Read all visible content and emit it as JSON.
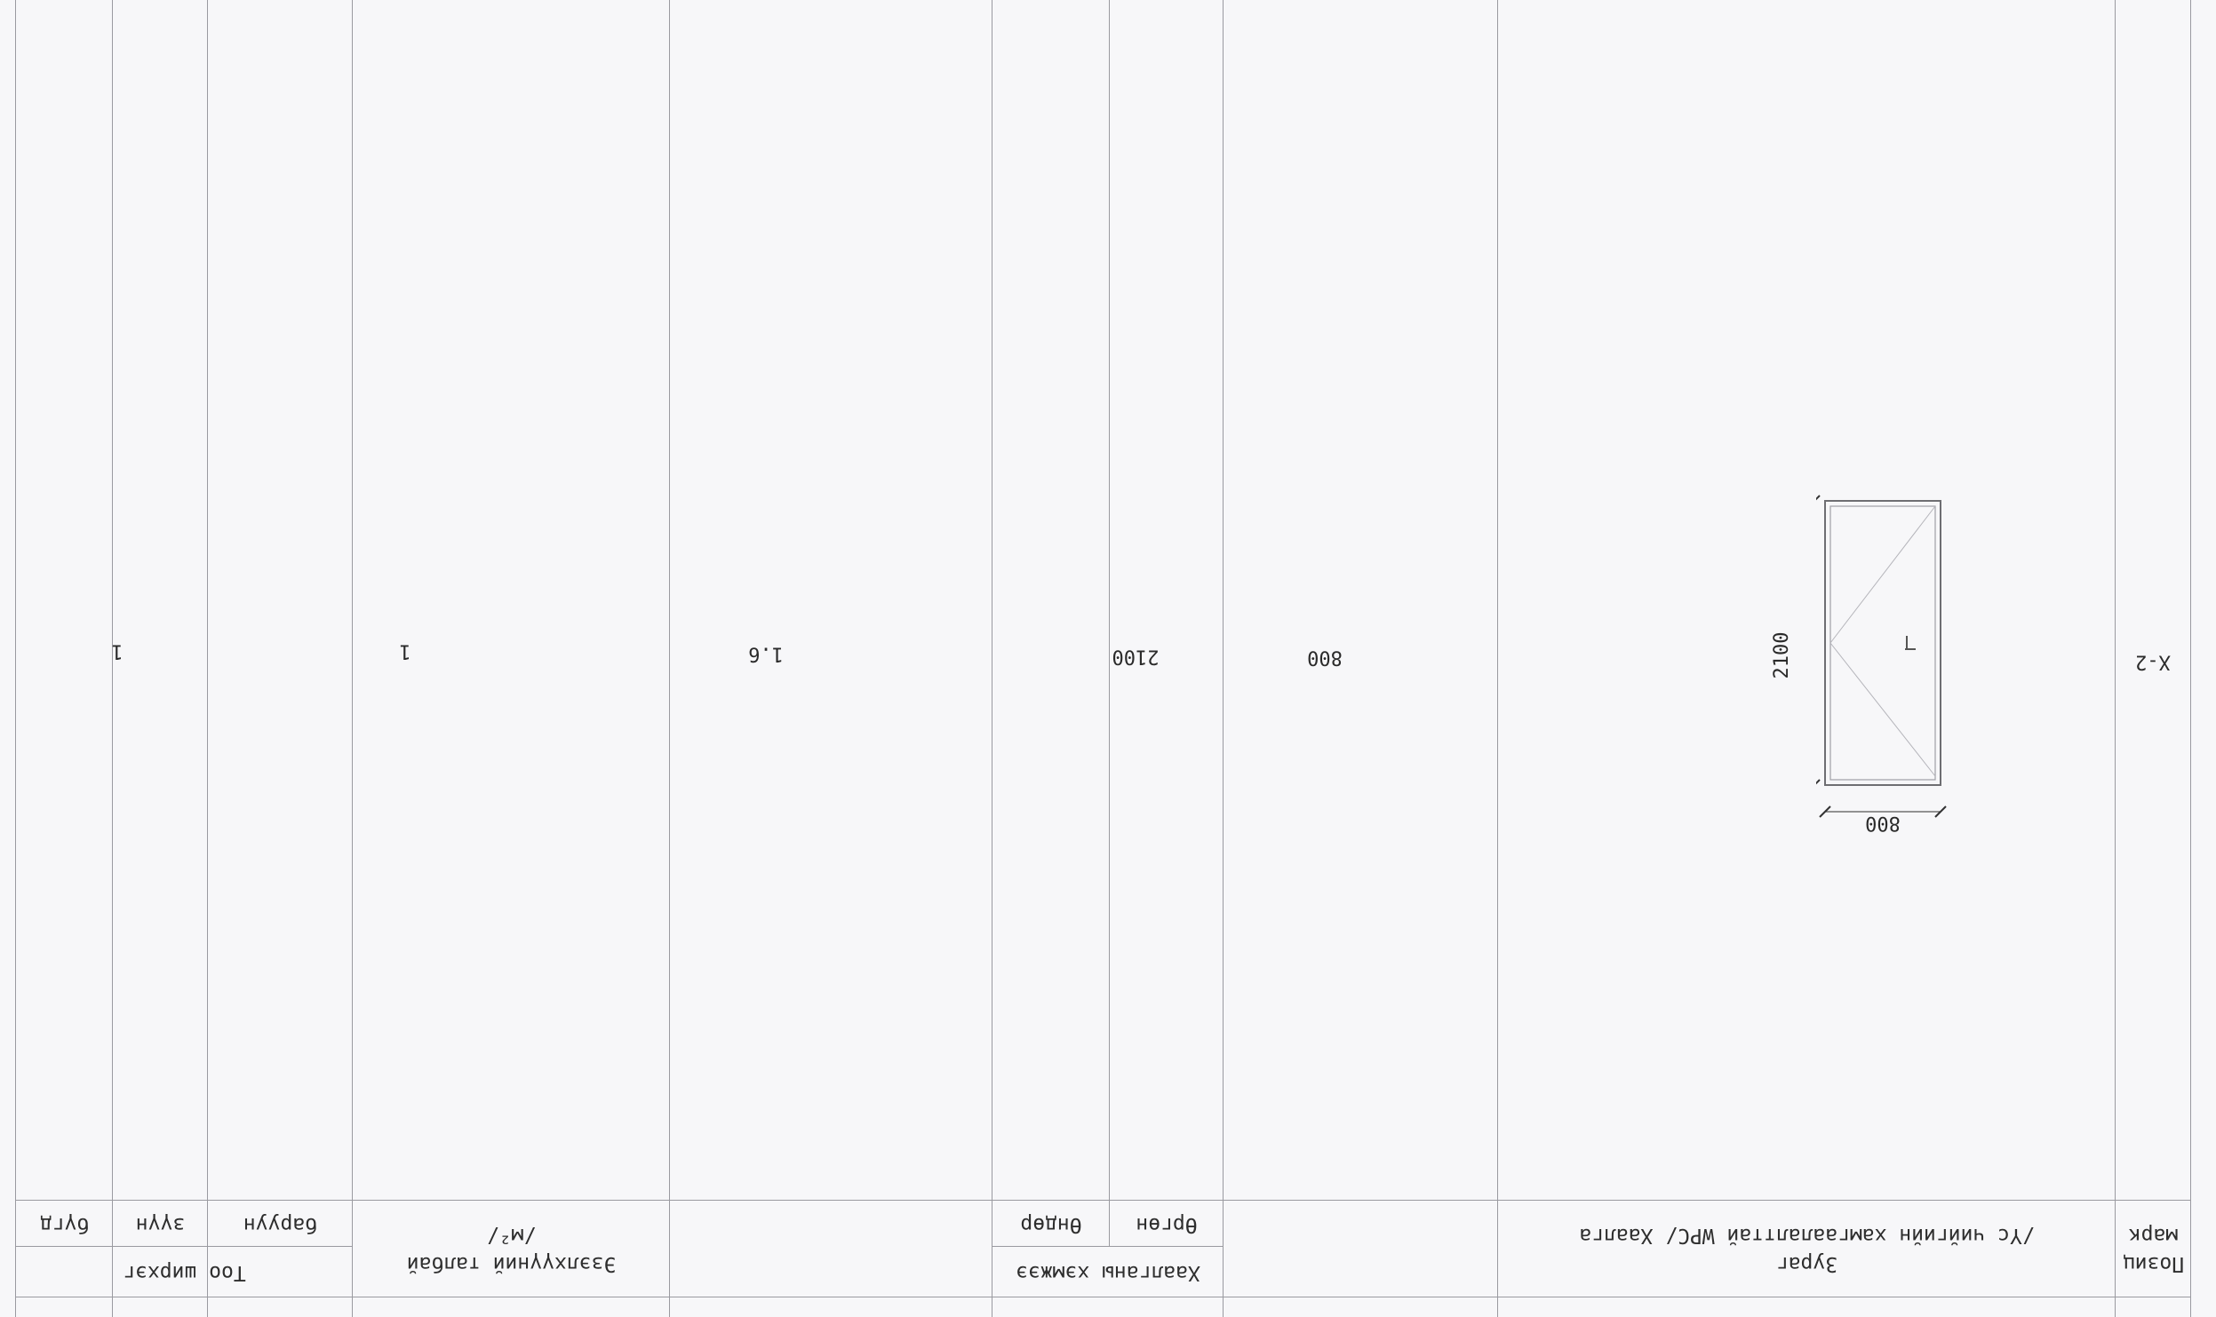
{
  "header": {
    "col_position": "Позиц марк",
    "col_name_line1": "Зураг",
    "col_name_line2": "/Үс чийгийн хамгаалалттай WPC/ Хаалга",
    "col_size_group": "Хаалганы хэмжээ",
    "col_size_width": "Өргөн",
    "col_size_height": "Өндөр",
    "col_area_line1": "Эзэлхүүний талбай",
    "col_area_line2": "/м²/",
    "col_qty_group": "Тоо ширхэг",
    "col_qty_left": "баруун",
    "col_qty_mid": "зүүн",
    "col_qty_right": "бүгд"
  },
  "row": {
    "mark": "Х-2",
    "width": "800",
    "height": "2100",
    "area": "1.6",
    "qty_left": "1",
    "qty_mid": "",
    "qty_total": "1"
  },
  "drawing": {
    "dim_width": "800",
    "dim_height": "2100"
  }
}
